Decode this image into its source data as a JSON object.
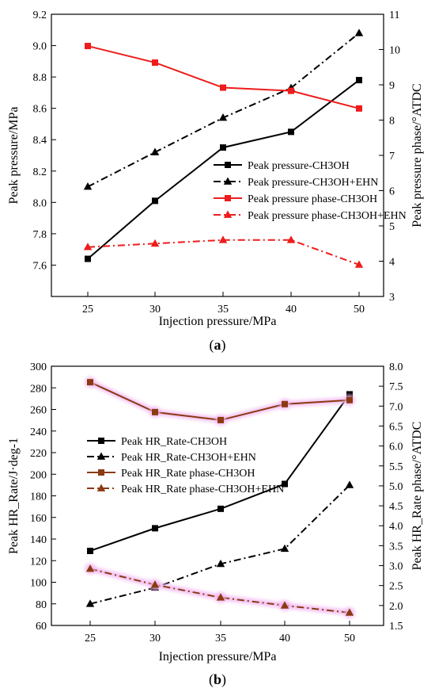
{
  "chart_data": [
    {
      "panel_label": "a",
      "type": "line",
      "xlabel": "Injection pressure/MPa",
      "ylabel": "Peak pressure/MPa",
      "ylabel_right": "Peak pressure phase/°ATDC",
      "categories": [
        "25",
        "30",
        "35",
        "40",
        "50"
      ],
      "ylim": [
        7.4,
        9.2
      ],
      "yticks": [
        "7.6",
        "7.8",
        "8.0",
        "8.2",
        "8.4",
        "8.6",
        "8.8",
        "9.0",
        "9.2"
      ],
      "ylim_right": [
        3,
        11
      ],
      "yticks_right": [
        "3",
        "4",
        "5",
        "6",
        "7",
        "8",
        "9",
        "10",
        "11"
      ],
      "legend_position": "middle-right",
      "series": [
        {
          "name": "Peak pressure-CH3OH",
          "axis": "left",
          "marker": "square",
          "color": "#000000",
          "dash": "solid",
          "values": [
            7.64,
            8.01,
            8.35,
            8.45,
            8.78
          ]
        },
        {
          "name": "Peak pressure-CH3OH+EHN",
          "axis": "left",
          "marker": "triangle",
          "color": "#000000",
          "dash": "dashdot",
          "values": [
            8.1,
            8.32,
            8.54,
            8.73,
            9.08
          ]
        },
        {
          "name": "Peak pressure phase-CH3OH",
          "axis": "right",
          "marker": "square",
          "color": "#ee1c1c",
          "dash": "solid",
          "values": [
            10.1,
            9.63,
            8.92,
            8.83,
            8.33
          ]
        },
        {
          "name": "Peak pressure phase-CH3OH+EHN",
          "axis": "right",
          "marker": "triangle",
          "color": "#ee1c1c",
          "dash": "dashdot",
          "values": [
            4.4,
            4.5,
            4.6,
            4.6,
            3.9
          ]
        }
      ]
    },
    {
      "panel_label": "b",
      "type": "line",
      "xlabel": "Injection pressure/MPa",
      "ylabel": "Peak HR_Rate/J·deg-1",
      "ylabel_right": "Peak HR_Rate phase/°ATDC",
      "categories": [
        "25",
        "30",
        "35",
        "40",
        "50"
      ],
      "ylim": [
        60,
        300
      ],
      "yticks": [
        "60",
        "80",
        "100",
        "120",
        "140",
        "160",
        "180",
        "200",
        "220",
        "240",
        "260",
        "280",
        "300"
      ],
      "ylim_right": [
        1.5,
        8.0
      ],
      "yticks_right": [
        "1.5",
        "2.0",
        "2.5",
        "3.0",
        "3.5",
        "4.0",
        "4.5",
        "5.0",
        "5.5",
        "6.0",
        "6.5",
        "7.0",
        "7.5",
        "8.0"
      ],
      "legend_position": "middle-left",
      "series": [
        {
          "name": "Peak HR_Rate-CH3OH",
          "axis": "left",
          "marker": "square",
          "color": "#000000",
          "dash": "solid",
          "values": [
            129,
            150,
            168,
            191,
            274
          ]
        },
        {
          "name": "Peak HR_Rate-CH3OH+EHN",
          "axis": "left",
          "marker": "triangle",
          "color": "#000000",
          "dash": "dashdot",
          "values": [
            80,
            95,
            117,
            131,
            190
          ]
        },
        {
          "name": "Peak HR_Rate phase-CH3OH",
          "axis": "right",
          "marker": "square",
          "color": "#8b3a12",
          "dash": "solid",
          "values": [
            7.6,
            6.85,
            6.65,
            7.05,
            7.15
          ]
        },
        {
          "name": "Peak HR_Rate phase-CH3OH+EHN",
          "axis": "right",
          "marker": "triangle",
          "color": "#8b3a12",
          "dash": "dashdot",
          "values": [
            2.92,
            2.52,
            2.2,
            2.0,
            1.82
          ]
        }
      ]
    }
  ]
}
